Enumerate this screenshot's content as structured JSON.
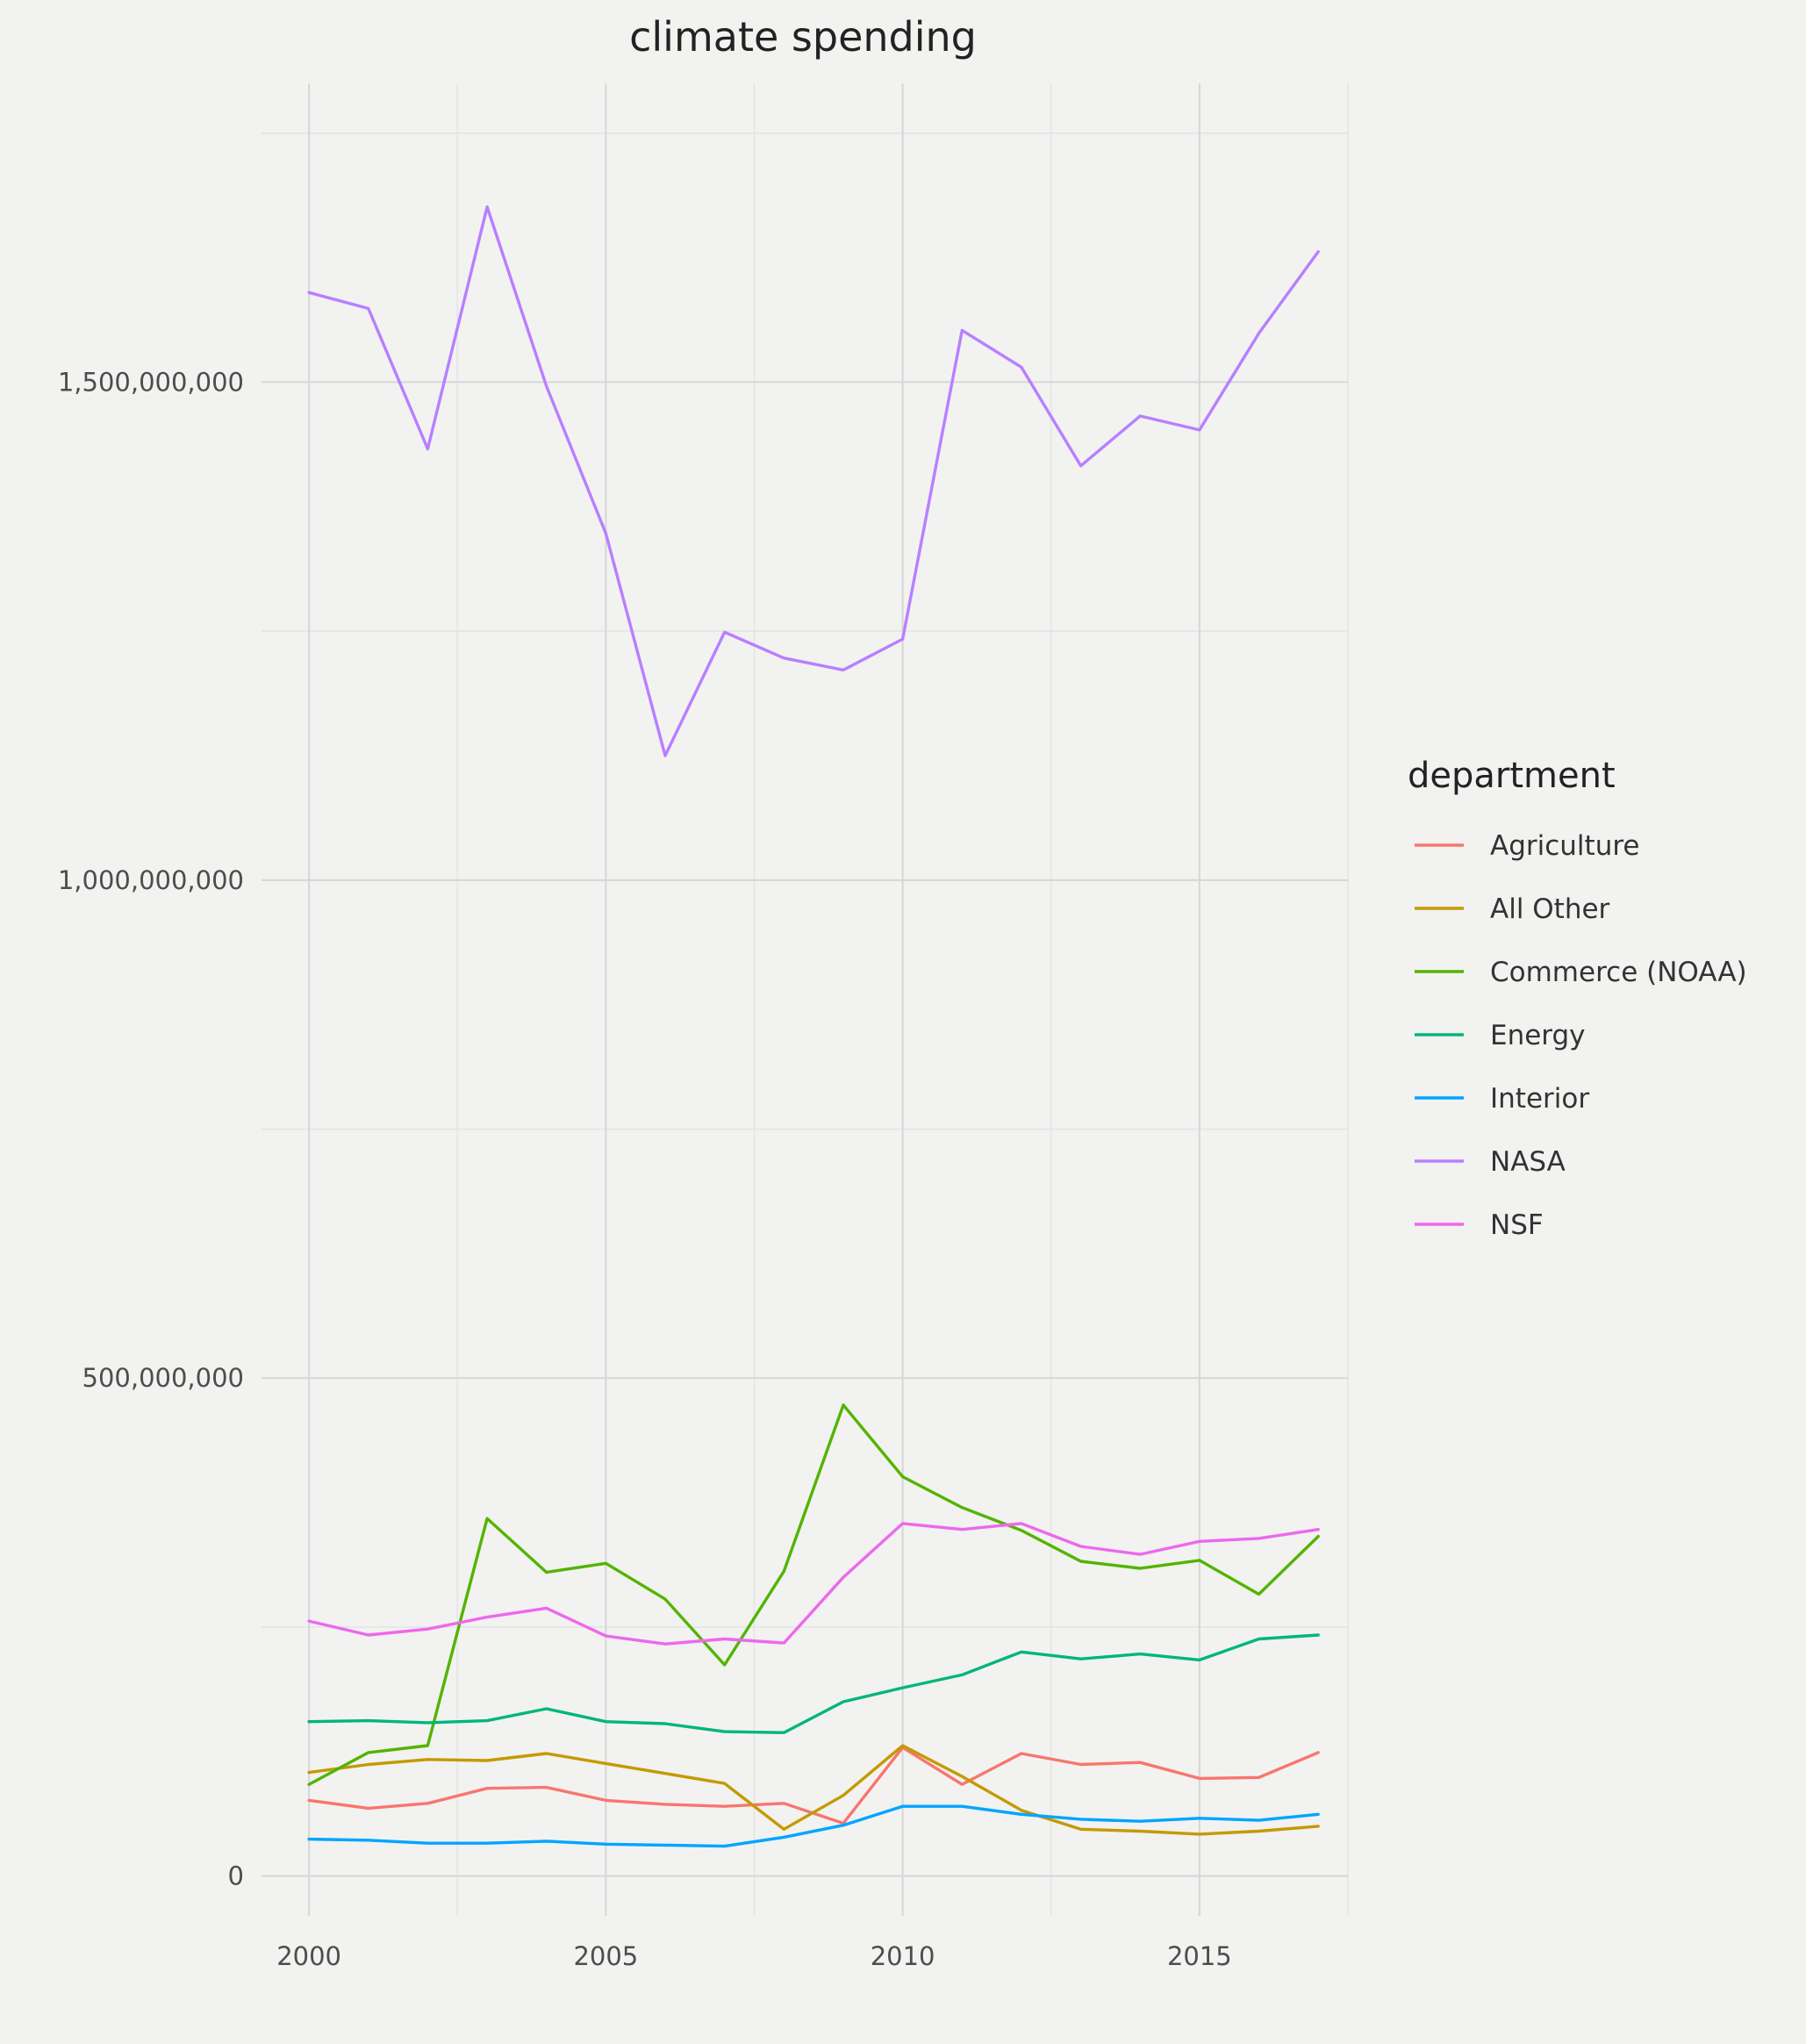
{
  "chart_data": {
    "type": "line",
    "title": "climate spending",
    "xlabel": "",
    "ylabel": "",
    "x": [
      2000,
      2001,
      2002,
      2003,
      2004,
      2005,
      2006,
      2007,
      2008,
      2009,
      2010,
      2011,
      2012,
      2013,
      2014,
      2015,
      2016,
      2017
    ],
    "xlim": [
      1999.2,
      2017.5
    ],
    "ylim": [
      -40000000,
      1800000000
    ],
    "x_ticks": [
      {
        "value": 2000,
        "label": "2000"
      },
      {
        "value": 2005,
        "label": "2005"
      },
      {
        "value": 2010,
        "label": "2010"
      },
      {
        "value": 2015,
        "label": "2015"
      }
    ],
    "y_ticks": [
      {
        "value": 0,
        "label": "0"
      },
      {
        "value": 500000000,
        "label": "500,000,000"
      },
      {
        "value": 1000000000,
        "label": "1,000,000,000"
      },
      {
        "value": 1500000000,
        "label": "1,500,000,000"
      }
    ],
    "grid": true,
    "legend": {
      "title": "department",
      "position": "right"
    },
    "series": [
      {
        "name": "Agriculture",
        "color": "#F8766D",
        "values": [
          76000000,
          68000000,
          73000000,
          88000000,
          89000000,
          76000000,
          72000000,
          70000000,
          73000000,
          53000000,
          129000000,
          92000000,
          123000000,
          112000000,
          114000000,
          98000000,
          99000000,
          124000000
        ]
      },
      {
        "name": "All Other",
        "color": "#C49A00",
        "values": [
          104000000,
          112000000,
          117000000,
          116000000,
          123000000,
          113000000,
          103000000,
          93000000,
          47000000,
          81000000,
          131000000,
          100000000,
          66000000,
          47000000,
          45000000,
          42000000,
          45000000,
          50000000
        ]
      },
      {
        "name": "Commerce (NOAA)",
        "color": "#53B400",
        "values": [
          92000000,
          124000000,
          131000000,
          359000000,
          305000000,
          314000000,
          278000000,
          212000000,
          306000000,
          473000000,
          401000000,
          370000000,
          347000000,
          316000000,
          309000000,
          317000000,
          283000000,
          341000000
        ]
      },
      {
        "name": "Energy",
        "color": "#00B67A",
        "values": [
          155000000,
          156000000,
          154000000,
          156000000,
          168000000,
          155000000,
          153000000,
          145000000,
          144000000,
          175000000,
          189000000,
          202000000,
          225000000,
          218000000,
          223000000,
          217000000,
          238000000,
          242000000
        ]
      },
      {
        "name": "Interior",
        "color": "#00A5FF",
        "values": [
          37000000,
          36000000,
          33000000,
          33000000,
          35000000,
          32000000,
          31000000,
          30000000,
          39000000,
          51000000,
          70000000,
          70000000,
          62000000,
          57000000,
          55000000,
          58000000,
          56000000,
          62000000
        ]
      },
      {
        "name": "NASA",
        "color": "#B87FFF",
        "values": [
          1590000000,
          1574000000,
          1433000000,
          1676000000,
          1496000000,
          1348000000,
          1125000000,
          1249000000,
          1223000000,
          1211000000,
          1242000000,
          1552000000,
          1515000000,
          1416000000,
          1466000000,
          1452000000,
          1549000000,
          1631000000
        ]
      },
      {
        "name": "NSF",
        "color": "#ED68ED",
        "values": [
          256000000,
          242000000,
          248000000,
          260000000,
          269000000,
          241000000,
          233000000,
          238000000,
          234000000,
          300000000,
          354000000,
          348000000,
          354000000,
          331000000,
          323000000,
          336000000,
          339000000,
          348000000
        ]
      }
    ]
  }
}
